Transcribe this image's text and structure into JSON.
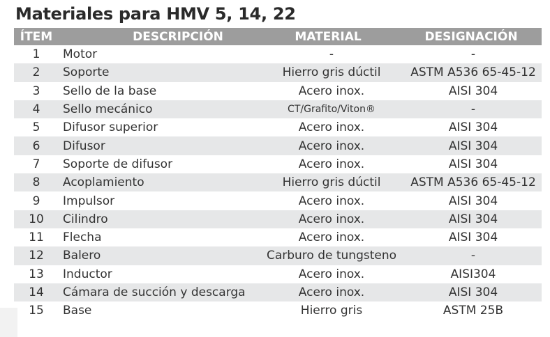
{
  "title": "Materiales para HMV 5, 14, 22",
  "headers": [
    "ÍTEM",
    "DESCRIPCIÓN",
    "MATERIAL",
    "DESIGNACIÓN"
  ],
  "rows": [
    [
      "1",
      "Motor",
      "-",
      "-"
    ],
    [
      "2",
      "Soporte",
      "Hierro gris dúctil",
      "ASTM A536 65-45-12"
    ],
    [
      "3",
      "Sello de la base",
      "Acero inox.",
      "AISI 304"
    ],
    [
      "4",
      "Sello mecánico",
      "CT/Grafito/Viton®",
      "-"
    ],
    [
      "5",
      "Difusor superior",
      "Acero inox.",
      "AISI 304"
    ],
    [
      "6",
      "Difusor",
      "Acero inox.",
      "AISI 304"
    ],
    [
      "7",
      "Soporte de difusor",
      "Acero inox.",
      "AISI 304"
    ],
    [
      "8",
      "Acoplamiento",
      "Hierro gris dúctil",
      "ASTM A536 65-45-12"
    ],
    [
      "9",
      "Impulsor",
      "Acero inox.",
      "AISI 304"
    ],
    [
      "10",
      "Cilindro",
      "Acero inox.",
      "AISI 304"
    ],
    [
      "11",
      "Flecha",
      "Acero inox.",
      "AISI 304"
    ],
    [
      "12",
      "Balero",
      "Carburo de tungsteno",
      "-"
    ],
    [
      "13",
      "Inductor",
      "Acero inox.",
      "AISI304"
    ],
    [
      "14",
      "Cámara de succión y descarga",
      "Acero inox.",
      "AISI 304"
    ],
    [
      "15",
      "Base",
      "Hierro gris",
      "ASTM 25B"
    ]
  ],
  "colors": {
    "header_bg": "#9d9d9d",
    "alt_row": "#e6e7e8"
  }
}
